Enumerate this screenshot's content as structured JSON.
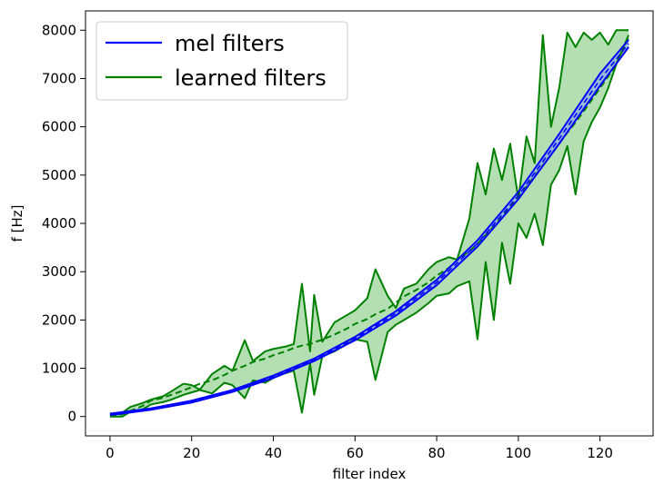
{
  "chart_data": {
    "type": "line",
    "title": "",
    "xlabel": "filter index",
    "ylabel": "f [Hz]",
    "xlim": [
      -6,
      133
    ],
    "ylim": [
      -400,
      8400
    ],
    "xticks": [
      0,
      20,
      40,
      60,
      80,
      100,
      120
    ],
    "yticks": [
      0,
      1000,
      2000,
      3000,
      4000,
      5000,
      6000,
      7000,
      8000
    ],
    "grid": false,
    "legend": {
      "placement": "top-left",
      "entries": [
        "mel filters",
        "learned filters"
      ]
    },
    "colors": {
      "mel": "#0000ff",
      "learned": "#008000",
      "learned_fill": "#b3dfb3",
      "mel_fill": "#8fb4df"
    },
    "series": [
      {
        "name": "mel filters",
        "style": "solid",
        "x": [
          0,
          10,
          20,
          30,
          40,
          50,
          60,
          70,
          80,
          90,
          100,
          110,
          120,
          127
        ],
        "lower": [
          30,
          140,
          290,
          510,
          800,
          1150,
          1580,
          2090,
          2720,
          3520,
          4500,
          5650,
          6850,
          7650
        ],
        "upper": [
          60,
          170,
          330,
          550,
          850,
          1200,
          1650,
          2180,
          2830,
          3650,
          4650,
          5850,
          7100,
          7800
        ]
      },
      {
        "name": "learned filters",
        "x": [
          0,
          3,
          5,
          8,
          10,
          13,
          15,
          18,
          20,
          22,
          25,
          28,
          30,
          33,
          35,
          38,
          40,
          43,
          45,
          47,
          49,
          50,
          52,
          55,
          58,
          60,
          63,
          65,
          68,
          70,
          72,
          75,
          78,
          80,
          83,
          85,
          88,
          90,
          92,
          94,
          96,
          98,
          100,
          102,
          104,
          106,
          108,
          110,
          112,
          114,
          116,
          118,
          120,
          122,
          124,
          127
        ],
        "lower": [
          0,
          0,
          100,
          150,
          250,
          300,
          350,
          450,
          500,
          550,
          480,
          700,
          650,
          380,
          750,
          700,
          800,
          900,
          950,
          80,
          1100,
          450,
          1250,
          1350,
          1500,
          1600,
          1550,
          760,
          1750,
          1900,
          2000,
          2150,
          2350,
          2500,
          2550,
          2700,
          2800,
          1600,
          3200,
          2000,
          3600,
          2750,
          4000,
          3700,
          4200,
          3550,
          4800,
          5100,
          5600,
          4600,
          5700,
          6100,
          6400,
          6800,
          7300,
          7900
        ],
        "mean": [
          0,
          50,
          120,
          220,
          330,
          390,
          450,
          540,
          610,
          680,
          750,
          860,
          950,
          1050,
          1130,
          1200,
          1270,
          1350,
          1420,
          1470,
          1500,
          1540,
          1590,
          1700,
          1820,
          1920,
          2020,
          2120,
          2230,
          2360,
          2490,
          2620,
          2780,
          2920,
          3080,
          3240,
          3420,
          3580,
          3760,
          3940,
          4130,
          4330,
          4540,
          4760,
          4980,
          5200,
          5420,
          5650,
          5880,
          6090,
          6320,
          6560,
          6800,
          7040,
          7300,
          7850
        ],
        "upper": [
          50,
          80,
          200,
          280,
          350,
          420,
          520,
          680,
          650,
          560,
          880,
          1050,
          950,
          1580,
          1150,
          1350,
          1400,
          1450,
          1500,
          2750,
          1350,
          2520,
          1550,
          1950,
          2100,
          2200,
          2450,
          3050,
          2500,
          2250,
          2650,
          2750,
          3050,
          3200,
          3300,
          3250,
          4100,
          5250,
          4600,
          5550,
          4900,
          5650,
          4500,
          5800,
          5250,
          7900,
          6000,
          6800,
          7950,
          7650,
          7950,
          7800,
          7950,
          7700,
          8000,
          8000
        ]
      }
    ]
  }
}
